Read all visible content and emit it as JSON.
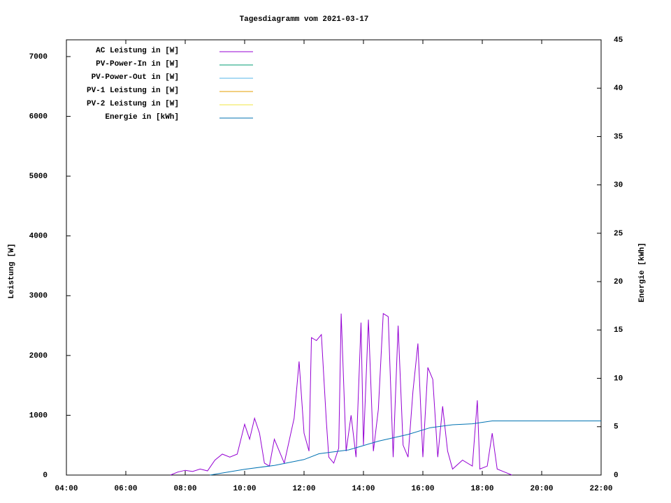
{
  "chart_data": {
    "type": "line",
    "title": "Tagesdiagramm vom 2021-03-17",
    "ylabel": "Leistung [W]",
    "y2label": "Energie [kWh]",
    "xlim": [
      "04:00",
      "22:00"
    ],
    "xticks": [
      "04:00",
      "06:00",
      "08:00",
      "10:00",
      "12:00",
      "14:00",
      "16:00",
      "18:00",
      "20:00",
      "22:00"
    ],
    "ylim": [
      0,
      7280
    ],
    "yticks": [
      0,
      1000,
      2000,
      3000,
      4000,
      5000,
      6000,
      7000
    ],
    "y2lim": [
      0,
      45
    ],
    "y2ticks": [
      0,
      5,
      10,
      15,
      20,
      25,
      30,
      35,
      40,
      45
    ],
    "grid": false,
    "legend": "top-left",
    "series": [
      {
        "name": "AC Leistung in [W]",
        "color": "#9400d3",
        "x": [
          "07:30",
          "07:45",
          "08:00",
          "08:15",
          "08:30",
          "08:45",
          "09:00",
          "09:15",
          "09:30",
          "09:45",
          "10:00",
          "10:10",
          "10:20",
          "10:30",
          "10:40",
          "10:50",
          "11:00",
          "11:10",
          "11:20",
          "11:40",
          "11:50",
          "12:00",
          "12:10",
          "12:15",
          "12:25",
          "12:35",
          "12:45",
          "12:50",
          "13:00",
          "13:10",
          "13:15",
          "13:25",
          "13:35",
          "13:45",
          "13:55",
          "14:00",
          "14:10",
          "14:20",
          "14:30",
          "14:40",
          "14:50",
          "15:00",
          "15:10",
          "15:20",
          "15:30",
          "15:40",
          "15:50",
          "16:00",
          "16:10",
          "16:20",
          "16:30",
          "16:40",
          "16:50",
          "17:00",
          "17:20",
          "17:40",
          "17:50",
          "17:55",
          "18:10",
          "18:20",
          "18:30",
          "18:45",
          "19:00"
        ],
        "values": [
          0,
          50,
          80,
          60,
          100,
          70,
          250,
          350,
          300,
          350,
          850,
          600,
          950,
          700,
          200,
          150,
          600,
          400,
          200,
          950,
          1900,
          700,
          400,
          2300,
          2250,
          2350,
          900,
          300,
          200,
          450,
          2700,
          400,
          1000,
          300,
          2550,
          500,
          2600,
          400,
          1100,
          2700,
          2650,
          300,
          2500,
          500,
          300,
          1400,
          2200,
          300,
          1800,
          1600,
          300,
          1150,
          400,
          100,
          250,
          150,
          1250,
          100,
          150,
          700,
          100,
          50,
          0
        ]
      },
      {
        "name": "PV-Power-In in [W]",
        "color": "#009e73",
        "x": [],
        "values": []
      },
      {
        "name": "PV-Power-Out in [W]",
        "color": "#56b4e9",
        "x": [],
        "values": []
      },
      {
        "name": "PV-1 Leistung in [W]",
        "color": "#e69f00",
        "x": [],
        "values": []
      },
      {
        "name": "PV-2 Leistung in [W]",
        "color": "#f0e442",
        "x": [],
        "values": []
      },
      {
        "name": "Energie in [kWh]",
        "color": "#0072b2",
        "axis": "y2",
        "x": [
          "08:50",
          "10:00",
          "11:00",
          "12:00",
          "12:30",
          "13:30",
          "14:30",
          "15:30",
          "16:15",
          "17:00",
          "17:40",
          "18:20",
          "22:00"
        ],
        "values": [
          0,
          0.6,
          1.0,
          1.6,
          2.2,
          2.6,
          3.5,
          4.2,
          4.9,
          5.2,
          5.3,
          5.6,
          5.6
        ]
      }
    ]
  }
}
